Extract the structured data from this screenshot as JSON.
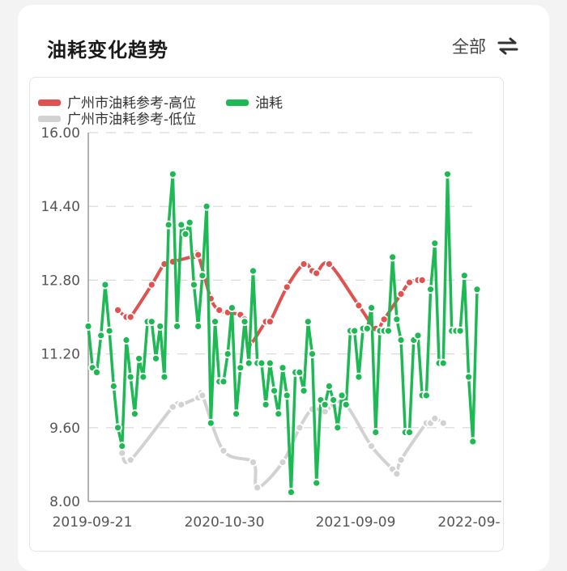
{
  "header": {
    "title": "油耗变化趋势",
    "filter_label": "全部",
    "filter_icon": "swap-icon"
  },
  "colors": {
    "high": "#e0524f",
    "fuel": "#1db954",
    "low": "#d2d2d2"
  },
  "chart_data": {
    "type": "line",
    "title": "",
    "xlabel": "",
    "ylabel": "",
    "ylim": [
      8.0,
      16.0
    ],
    "yticks": [
      "16.00",
      "14.40",
      "12.80",
      "11.20",
      "9.60",
      "8.00"
    ],
    "xticks": [
      "2019-09-21",
      "2020-10-30",
      "2021-09-09",
      "2022-09-"
    ],
    "legend": [
      "广州市油耗参考-高位",
      "油耗",
      "广州市油耗参考-低位"
    ],
    "legend_position": "top-left",
    "grid": "horizontal dashed",
    "series": [
      {
        "name": "广州市油耗参考-高位",
        "points": [
          [
            7,
            12.15
          ],
          [
            9,
            12.0
          ],
          [
            10,
            12.0
          ],
          [
            15,
            12.7
          ],
          [
            18,
            13.15
          ],
          [
            20,
            13.2
          ],
          [
            25,
            13.32
          ],
          [
            26,
            13.35
          ],
          [
            29,
            12.4
          ],
          [
            31,
            12.15
          ],
          [
            33,
            12.1
          ],
          [
            36,
            12.05
          ],
          [
            37,
            11.95
          ],
          [
            38,
            11.4
          ],
          [
            42,
            11.9
          ],
          [
            43,
            11.9
          ],
          [
            47,
            12.65
          ],
          [
            51,
            13.15
          ],
          [
            53,
            13.0
          ],
          [
            54,
            12.95
          ],
          [
            57,
            13.15
          ],
          [
            64,
            12.25
          ],
          [
            68,
            11.75
          ],
          [
            70,
            11.95
          ],
          [
            74,
            12.5
          ],
          [
            76,
            12.75
          ],
          [
            78,
            12.8
          ],
          [
            79,
            12.8
          ]
        ]
      },
      {
        "name": "油耗",
        "values": [
          11.8,
          10.9,
          10.8,
          11.6,
          12.7,
          11.7,
          10.5,
          9.6,
          9.2,
          11.5,
          10.7,
          9.9,
          11.1,
          10.7,
          11.9,
          11.9,
          11.1,
          11.8,
          10.7,
          14.0,
          15.1,
          11.8,
          14.0,
          13.8,
          14.05,
          12.7,
          11.8,
          12.9,
          14.4,
          9.7,
          11.9,
          10.6,
          10.6,
          11.2,
          12.2,
          9.9,
          10.9,
          11.9,
          11.0,
          13.0,
          11.0,
          11.0,
          10.1,
          11.0,
          10.4,
          9.9,
          10.9,
          10.3,
          8.2,
          10.8,
          10.8,
          10.4,
          11.9,
          11.2,
          8.4,
          10.2,
          10.1,
          10.5,
          10.2,
          9.6,
          10.3,
          10.1,
          11.7,
          11.7,
          10.7,
          11.75,
          11.75,
          12.2,
          9.5,
          11.7,
          11.7,
          11.7,
          13.3,
          11.95,
          11.5,
          9.5,
          9.5,
          11.5,
          11.6,
          10.3,
          10.3,
          12.6,
          13.6,
          11.0,
          11.0,
          15.1,
          11.7,
          11.7,
          11.7,
          12.9,
          10.7,
          9.3,
          12.6
        ]
      },
      {
        "name": "广州市油耗参考-低位",
        "points": [
          [
            8,
            9.05
          ],
          [
            10,
            8.9
          ],
          [
            20,
            10.05
          ],
          [
            22,
            10.1
          ],
          [
            26,
            10.25
          ],
          [
            27,
            10.3
          ],
          [
            32,
            9.1
          ],
          [
            39,
            8.85
          ],
          [
            40,
            8.3
          ],
          [
            46,
            8.85
          ],
          [
            50,
            9.6
          ],
          [
            53,
            10.0
          ],
          [
            56,
            9.95
          ],
          [
            58,
            10.1
          ],
          [
            61,
            10.1
          ],
          [
            67,
            9.2
          ],
          [
            72,
            8.7
          ],
          [
            73,
            8.6
          ],
          [
            74,
            8.9
          ],
          [
            80,
            9.7
          ],
          [
            81,
            9.7
          ],
          [
            82,
            9.8
          ],
          [
            84,
            9.7
          ]
        ]
      }
    ]
  }
}
